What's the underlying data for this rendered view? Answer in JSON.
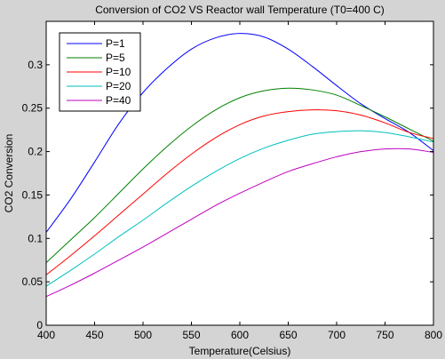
{
  "chart_data": {
    "type": "line",
    "title": "Conversion of CO2 VS Reactor wall Temperature (T0=400 C)",
    "xlabel": "Temperature(Celsius)",
    "ylabel": "CO2 Conversion",
    "xlim": [
      400,
      800
    ],
    "ylim": [
      0,
      0.35
    ],
    "xticks": [
      400,
      450,
      500,
      550,
      600,
      650,
      700,
      750,
      800
    ],
    "yticks": [
      0,
      0.05,
      0.1,
      0.15,
      0.2,
      0.25,
      0.3
    ],
    "ytick_labels": [
      "0",
      "0.05",
      "0.1",
      "0.15",
      "0.2",
      "0.25",
      "0.3"
    ],
    "grid": false,
    "legend_position": "top-left",
    "x": [
      400,
      425,
      450,
      475,
      500,
      525,
      550,
      575,
      600,
      625,
      650,
      675,
      700,
      725,
      750,
      775,
      800
    ],
    "series": [
      {
        "name": "P=1",
        "color": "#0000ff",
        "values": [
          0.107,
          0.145,
          0.188,
          0.232,
          0.268,
          0.296,
          0.318,
          0.331,
          0.336,
          0.332,
          0.318,
          0.298,
          0.276,
          0.255,
          0.238,
          0.222,
          0.201
        ]
      },
      {
        "name": "P=5",
        "color": "#008000",
        "values": [
          0.072,
          0.098,
          0.124,
          0.152,
          0.18,
          0.206,
          0.229,
          0.248,
          0.262,
          0.27,
          0.273,
          0.271,
          0.265,
          0.253,
          0.24,
          0.226,
          0.212
        ]
      },
      {
        "name": "P=10",
        "color": "#ff0000",
        "values": [
          0.058,
          0.08,
          0.103,
          0.127,
          0.151,
          0.175,
          0.197,
          0.216,
          0.231,
          0.241,
          0.246,
          0.248,
          0.247,
          0.242,
          0.233,
          0.222,
          0.215
        ]
      },
      {
        "name": "P=20",
        "color": "#00bfbf",
        "values": [
          0.045,
          0.063,
          0.082,
          0.102,
          0.121,
          0.141,
          0.16,
          0.177,
          0.192,
          0.204,
          0.213,
          0.22,
          0.223,
          0.224,
          0.222,
          0.217,
          0.211
        ]
      },
      {
        "name": "P=40",
        "color": "#bf00bf",
        "values": [
          0.033,
          0.046,
          0.06,
          0.075,
          0.09,
          0.106,
          0.122,
          0.138,
          0.152,
          0.165,
          0.177,
          0.186,
          0.194,
          0.2,
          0.203,
          0.203,
          0.199
        ]
      }
    ]
  }
}
